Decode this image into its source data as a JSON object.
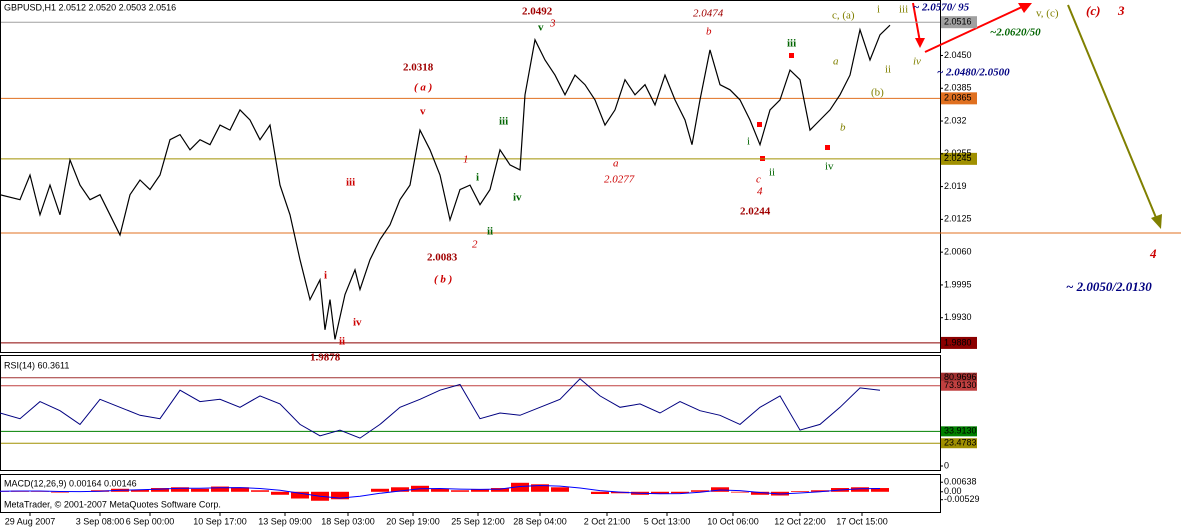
{
  "chart_data": {
    "type": "line",
    "title": "GBPUSD,H1  2.0512 2.0520 2.0503 2.0516",
    "color": "#000000",
    "x": [
      0,
      20,
      30,
      40,
      50,
      60,
      70,
      80,
      90,
      100,
      110,
      120,
      130,
      140,
      150,
      160,
      170,
      180,
      190,
      200,
      210,
      220,
      230,
      240,
      250,
      260,
      270,
      280,
      290,
      300,
      310,
      320,
      325,
      330,
      335,
      345,
      355,
      360,
      370,
      380,
      390,
      400,
      410,
      420,
      430,
      440,
      450,
      460,
      470,
      480,
      490,
      500,
      510,
      520,
      525,
      535,
      545,
      555,
      565,
      575,
      585,
      595,
      605,
      615,
      625,
      635,
      645,
      655,
      665,
      675,
      685,
      692,
      700,
      710,
      720,
      730,
      740,
      750,
      760,
      770,
      780,
      790,
      800,
      810,
      820,
      830,
      840,
      850,
      860,
      870,
      880,
      890
    ],
    "values": [
      2.0174,
      2.0164,
      2.0213,
      2.0134,
      2.0193,
      2.0134,
      2.0243,
      2.0193,
      2.0164,
      2.0174,
      2.0134,
      2.0094,
      2.0174,
      2.0203,
      2.0184,
      2.0213,
      2.0283,
      2.0293,
      2.0263,
      2.0283,
      2.0273,
      2.0312,
      2.0302,
      2.0342,
      2.0322,
      2.0283,
      2.0312,
      2.0193,
      2.0134,
      2.0045,
      1.9966,
      2.0005,
      1.9906,
      1.9966,
      1.9887,
      1.9976,
      2.0025,
      1.9986,
      2.0045,
      2.0085,
      2.0114,
      2.0164,
      2.0193,
      2.0302,
      2.0263,
      2.0213,
      2.0124,
      2.0184,
      2.0193,
      2.0154,
      2.0184,
      2.0263,
      2.0233,
      2.0223,
      2.0372,
      2.0481,
      2.0441,
      2.0411,
      2.0372,
      2.0411,
      2.0392,
      2.0362,
      2.0312,
      2.0342,
      2.0402,
      2.0372,
      2.0392,
      2.0352,
      2.0411,
      2.0362,
      2.0322,
      2.0273,
      2.0362,
      2.0461,
      2.0392,
      2.0382,
      2.0362,
      2.0322,
      2.0273,
      2.0342,
      2.0362,
      2.0421,
      2.0402,
      2.0302,
      2.0322,
      2.0342,
      2.0372,
      2.0411,
      2.0501,
      2.0441,
      2.0491,
      2.051
    ],
    "xlim": [
      0,
      940
    ],
    "xticks": [
      {
        "value": 30,
        "label": "29 Aug 2007"
      },
      {
        "value": 100,
        "label": "3 Sep 08:00"
      },
      {
        "value": 150,
        "label": "6 Sep 00:00"
      },
      {
        "value": 220,
        "label": "10 Sep 17:00"
      },
      {
        "value": 285,
        "label": "13 Sep 09:00"
      },
      {
        "value": 348,
        "label": "18 Sep 03:00"
      },
      {
        "value": 413,
        "label": "20 Sep 19:00"
      },
      {
        "value": 478,
        "label": "25 Sep 12:00"
      },
      {
        "value": 540,
        "label": "28 Sep 04:00"
      },
      {
        "value": 607,
        "label": "2 Oct 21:00"
      },
      {
        "value": 667,
        "label": "5 Oct 13:00"
      },
      {
        "value": 733,
        "label": "10 Oct 06:00"
      },
      {
        "value": 800,
        "label": "12 Oct 22:00"
      },
      {
        "value": 862,
        "label": "17 Oct 15:00"
      }
    ],
    "ylim": [
      1.9862,
      2.056
    ],
    "yticks": [
      {
        "value": 2.045,
        "label": "2.0450"
      },
      2.0385,
      2.032,
      2.0255,
      2.019,
      2.0125,
      {
        "value": 2.006,
        "label": "2.0060"
      },
      1.9995,
      {
        "value": 1.993,
        "label": "1.9930"
      }
    ],
    "hlines": [
      {
        "value": 2.0516,
        "color": "#a0a0a0"
      },
      {
        "value": 2.0365,
        "color": "#e07020"
      },
      {
        "value": 2.0245,
        "color": "#a09000"
      },
      {
        "value": 2.0098,
        "color": "#e07020"
      },
      {
        "value": 1.988,
        "label": "1.9880",
        "color": "#8b0000"
      }
    ],
    "annotations": [
      "2.0492",
      "3",
      "v",
      "2.0474",
      "b",
      "c, (a)",
      "i",
      "iii",
      "~ 2.0570/ 95",
      "v, (c)",
      "(c)",
      "3",
      "~2.0620/50",
      "iv",
      "~ 2.0480/2.0500",
      "iii",
      "a",
      "(b)",
      "ii",
      "2.0318",
      "( a )",
      "v",
      "b",
      "iii",
      "i",
      "1",
      "a",
      "2.0277",
      "c",
      "ii",
      "iv",
      "4",
      "i",
      "iii",
      "iv",
      "2.0244",
      "ii",
      "2",
      "2.0083",
      "( b )",
      "i",
      "iv",
      "ii",
      "1.9878",
      "4",
      "~ 2.0050/2.0130"
    ],
    "indicator_x": [
      0,
      20,
      40,
      60,
      80,
      100,
      120,
      140,
      160,
      180,
      200,
      220,
      240,
      260,
      280,
      300,
      320,
      340,
      360,
      380,
      400,
      420,
      440,
      460,
      480,
      500,
      520,
      540,
      560,
      580,
      600,
      620,
      640,
      660,
      680,
      700,
      720,
      740,
      760,
      780,
      800,
      820,
      840,
      860,
      880
    ],
    "rsi": {
      "title": "RSI(14) 60.3611",
      "color": "#000080",
      "ylim": [
        0,
        100
      ],
      "values": [
        50,
        45,
        60,
        52,
        40,
        62,
        55,
        48,
        45,
        70,
        60,
        62,
        55,
        65,
        58,
        40,
        30,
        35,
        28,
        40,
        55,
        62,
        70,
        75,
        45,
        50,
        48,
        55,
        62,
        80,
        65,
        55,
        58,
        50,
        60,
        52,
        48,
        40,
        55,
        65,
        35,
        40,
        55,
        72,
        70
      ],
      "levels": [
        {
          "value": 80.9696,
          "color": "#a03030"
        },
        {
          "value": 73.913,
          "label": "73.9130",
          "color": "#c04040"
        },
        {
          "value": 33.913,
          "label": "33.9130",
          "color": "#008000"
        },
        {
          "value": 23.4783,
          "color": "#a09000"
        }
      ],
      "yticks": [
        0
      ]
    },
    "macd": {
      "title": "MACD(12,26,9) 0.00164 0.00146",
      "hist_color": "#ff0000",
      "signal_color": "#0000ff",
      "ylim": [
        -0.0135,
        0.0112
      ],
      "yticks": [
        0.00638,
        {
          "value": 0,
          "label": "0.00"
        },
        -0.00529
      ],
      "hist": [
        0.0005,
        0.0008,
        0.0002,
        -0.0005,
        0.0,
        0.001,
        0.002,
        0.0015,
        0.0025,
        0.003,
        0.002,
        0.0035,
        0.003,
        0.001,
        -0.002,
        -0.0045,
        -0.006,
        -0.005,
        0.0,
        0.002,
        0.003,
        0.004,
        0.002,
        0.001,
        0.0015,
        0.0025,
        0.006,
        0.005,
        0.003,
        0.0,
        -0.0015,
        -0.001,
        -0.002,
        -0.0015,
        -0.001,
        0.001,
        0.003,
        -0.0005,
        -0.002,
        -0.0025,
        0.0005,
        0.001,
        0.0025,
        0.003,
        0.0025
      ],
      "signal": [
        0.0003,
        0.0005,
        0.0005,
        0.0002,
        0.0001,
        0.0004,
        0.001,
        0.0013,
        0.0018,
        0.0023,
        0.0023,
        0.0027,
        0.0028,
        0.0022,
        0.001,
        -0.001,
        -0.003,
        -0.0042,
        -0.003,
        -0.001,
        0.0005,
        0.002,
        0.0022,
        0.0018,
        0.0016,
        0.0018,
        0.0035,
        0.0042,
        0.0038,
        0.0025,
        0.0008,
        -0.0002,
        -0.001,
        -0.0013,
        -0.0012,
        -0.0003,
        0.0012,
        0.0008,
        -0.0005,
        -0.0015,
        -0.0008,
        0.0,
        0.0012,
        0.002,
        0.0022
      ]
    },
    "footer": "MetaTrader, © 2001-2007 MetaQuotes Software Corp."
  }
}
